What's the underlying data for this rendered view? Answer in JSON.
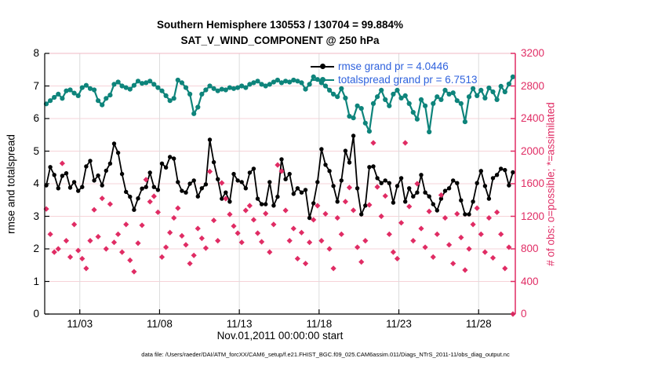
{
  "header": {
    "title_line1": "Southern Hemisphere 130553 / 130704 = 99.884%",
    "title_line2": "SAT_V_WIND_COMPONENT @ 250 hPa"
  },
  "footer": {
    "data_file_note": "data file: /Users/raeder/DAI/ATM_forcXX/CAM6_setup/f.e21.FHIST_BGC.f09_025.CAM6assim.011/Diags_NTrS_2011-11/obs_diag_output.nc"
  },
  "colors": {
    "rmse": "#000000",
    "totalspread": "#0E847B",
    "obs": "#E02C64",
    "legend_text": "#2F62DD",
    "grid_horizontal": "#F6D3D8",
    "grid_vertical": "#DCDCDC",
    "axis_left": "#000000",
    "axis_right": "#E02C64",
    "axis_top": "#F0B8C6"
  },
  "chart_data": {
    "type": "line",
    "title": "Southern Hemisphere 130553 / 130704 = 99.884%",
    "subtitle": "SAT_V_WIND_COMPONENT @ 250 hPa",
    "xlabel": "Nov.01,2011 00:00:00 start",
    "ylabel_left": "rmse and totalspread",
    "ylabel_right": "# of obs: o=possible; *=assimilated",
    "x_range": [
      0.8,
      30.3
    ],
    "ylim_left": [
      0,
      8
    ],
    "ylim_right": [
      0,
      3200
    ],
    "grid": true,
    "legend_position": "top-right-inside",
    "x_ticks": [
      {
        "value": 3,
        "label": "11/03"
      },
      {
        "value": 8,
        "label": "11/08"
      },
      {
        "value": 13,
        "label": "11/13"
      },
      {
        "value": 18,
        "label": "11/18"
      },
      {
        "value": 23,
        "label": "11/23"
      },
      {
        "value": 28,
        "label": "11/28"
      }
    ],
    "left_ticks": [
      0,
      1,
      2,
      3,
      4,
      5,
      6,
      7,
      8
    ],
    "right_ticks": [
      0,
      400,
      800,
      1200,
      1600,
      2000,
      2400,
      2800,
      3200
    ],
    "x_start_day": 0.9,
    "x_step_days": 0.25,
    "series": [
      {
        "name": "totalspread",
        "legend": "totalspread grand pr = 6.7513",
        "grand_value": 6.7513,
        "axis": "left",
        "marker": "circle",
        "color": "#0E847B",
        "values": [
          6.45,
          6.55,
          6.65,
          6.75,
          6.62,
          6.85,
          6.88,
          6.78,
          6.7,
          6.95,
          7.02,
          6.92,
          6.88,
          6.55,
          6.42,
          6.62,
          6.72,
          7.05,
          7.12,
          7.0,
          6.95,
          6.9,
          7.02,
          7.15,
          7.08,
          7.1,
          7.15,
          7.05,
          6.95,
          6.85,
          6.7,
          6.55,
          6.62,
          7.18,
          7.1,
          6.95,
          6.75,
          6.15,
          6.35,
          6.75,
          6.88,
          7.0,
          6.92,
          6.85,
          6.9,
          6.88,
          6.95,
          6.92,
          6.95,
          7.0,
          6.95,
          7.05,
          7.1,
          7.15,
          7.05,
          7.0,
          7.05,
          7.12,
          7.18,
          7.1,
          7.15,
          7.12,
          7.18,
          7.15,
          7.1,
          6.9,
          7.05,
          7.28,
          7.2,
          7.1,
          7.0,
          6.87,
          6.75,
          6.67,
          6.92,
          6.63,
          6.07,
          6.02,
          6.39,
          6.31,
          5.86,
          5.61,
          6.46,
          6.67,
          6.87,
          6.58,
          6.39,
          6.75,
          6.87,
          6.63,
          6.7,
          6.46,
          6.19,
          5.98,
          6.58,
          6.39,
          5.59,
          6.46,
          6.67,
          6.58,
          6.87,
          6.75,
          6.79,
          6.55,
          6.46,
          5.9,
          6.67,
          6.92,
          6.7,
          6.87,
          6.63,
          6.94,
          6.82,
          6.58,
          6.99,
          6.82,
          7.06,
          7.28
        ]
      },
      {
        "name": "rmse",
        "legend": "rmse grand pr = 4.0446",
        "grand_value": 4.0446,
        "axis": "left",
        "marker": "circle",
        "color": "#000000",
        "values": [
          3.95,
          4.51,
          4.27,
          3.86,
          4.24,
          4.32,
          3.88,
          4.05,
          3.78,
          3.9,
          4.53,
          4.7,
          4.1,
          4.25,
          3.95,
          4.4,
          4.62,
          5.23,
          4.95,
          4.3,
          3.75,
          3.6,
          3.2,
          3.55,
          3.85,
          3.9,
          4.34,
          3.9,
          3.81,
          4.62,
          4.5,
          4.82,
          4.77,
          4.05,
          3.78,
          3.73,
          4.0,
          4.1,
          3.61,
          3.86,
          3.98,
          5.35,
          4.66,
          4.14,
          3.54,
          3.73,
          3.45,
          4.3,
          4.1,
          4.05,
          3.86,
          4.34,
          4.46,
          3.54,
          3.37,
          3.37,
          4.05,
          3.33,
          3.6,
          4.75,
          4.14,
          4.3,
          3.69,
          3.86,
          3.73,
          3.81,
          2.95,
          3.4,
          4.05,
          5.06,
          4.58,
          4.39,
          3.93,
          3.45,
          4.1,
          5.01,
          4.65,
          5.47,
          3.86,
          3.06,
          3.33,
          4.51,
          4.53,
          4.17,
          4.02,
          4.1,
          4.02,
          3.42,
          3.93,
          4.17,
          3.45,
          3.86,
          3.61,
          3.73,
          4.27,
          3.73,
          3.61,
          3.37,
          3.18,
          3.54,
          3.78,
          3.86,
          4.1,
          4.02,
          3.49,
          3.06,
          3.06,
          3.45,
          4.02,
          4.39,
          3.93,
          3.54,
          4.17,
          4.27,
          4.46,
          4.42,
          3.95,
          4.35
        ]
      },
      {
        "name": "obs_assimilated",
        "legend": null,
        "axis": "right",
        "marker": "asterisk-diamond",
        "color": "#E02C64",
        "values": [
          1290,
          980,
          760,
          800,
          1850,
          900,
          700,
          1100,
          780,
          680,
          560,
          900,
          1280,
          950,
          1420,
          800,
          1350,
          880,
          980,
          760,
          1100,
          660,
          520,
          870,
          1090,
          1650,
          1379,
          1446,
          1250,
          700,
          820,
          1000,
          1180,
          1300,
          960,
          850,
          620,
          720,
          1050,
          930,
          810,
          1750,
          1150,
          900,
          1610,
          1417,
          1224,
          1080,
          993,
          880,
          1272,
          1330,
          1157,
          993,
          887,
          1234,
          760,
          1100,
          1830,
          1754,
          1272,
          900,
          1050,
          680,
          1000,
          620,
          880,
          1157,
          1330,
          900,
          1230,
          800,
          560,
          1180,
          980,
          1380,
          1553,
          1274,
          820,
          640,
          900,
          1340,
          2101,
          1560,
          1200,
          1450,
          980,
          760,
          680,
          1120,
          2101,
          1320,
          900,
          1600,
          1050,
          820,
          1260,
          700,
          980,
          1460,
          1180,
          850,
          620,
          1230,
          940,
          540,
          800,
          1100,
          1300,
          980,
          760,
          1180,
          690,
          1250,
          980,
          560,
          820,
          0
        ]
      }
    ]
  }
}
